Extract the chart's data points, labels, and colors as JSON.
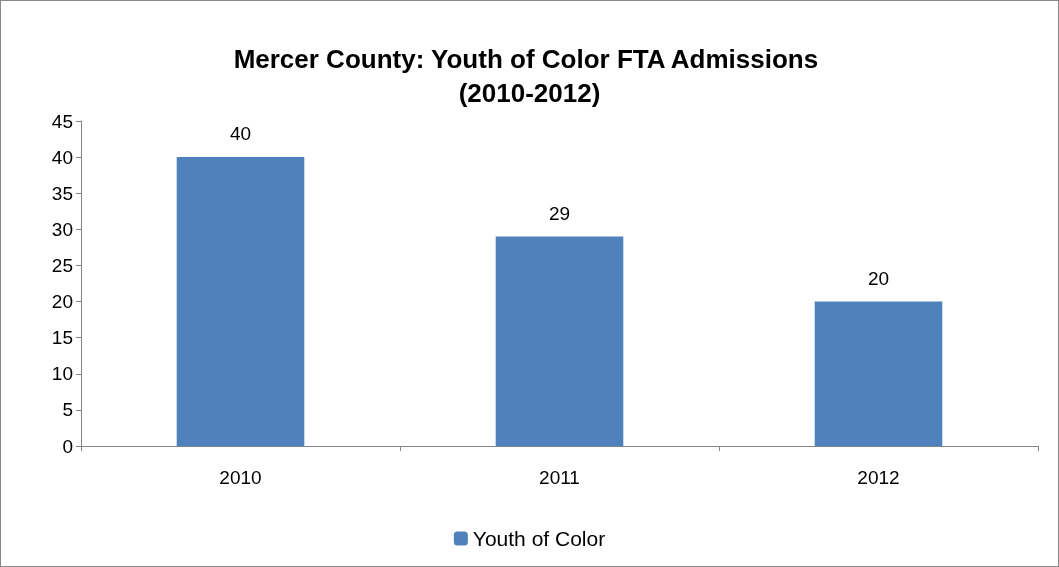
{
  "chart_data": {
    "type": "bar",
    "title": "Mercer County: Youth of Color FTA Admissions (2010-2012)",
    "categories": [
      "2010",
      "2011",
      "2012"
    ],
    "series": [
      {
        "name": "Youth of Color",
        "color": "#4f81bd",
        "values": [
          40,
          29,
          20
        ]
      }
    ],
    "ylim": [
      0,
      45
    ],
    "yticks": [
      0,
      5,
      10,
      15,
      20,
      25,
      30,
      35,
      40,
      45
    ],
    "grid": false,
    "legend": "bottom",
    "data_labels": true
  }
}
